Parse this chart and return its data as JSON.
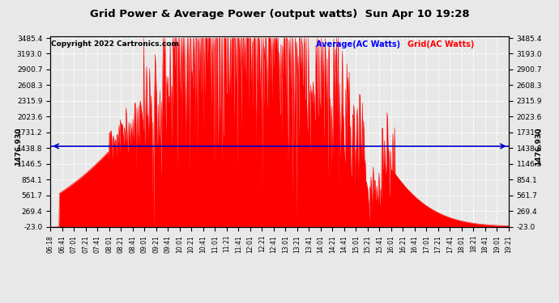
{
  "title": "Grid Power & Average Power (output watts)  Sun Apr 10 19:28",
  "copyright": "Copyright 2022 Cartronics.com",
  "legend_avg": "Average(AC Watts)",
  "legend_grid": "Grid(AC Watts)",
  "avg_value": 1476.93,
  "avg_label": "1476.930",
  "ymin": -23.0,
  "ymax": 3485.4,
  "yticks": [
    -23.0,
    269.4,
    561.7,
    854.1,
    1146.5,
    1438.8,
    1731.2,
    2023.6,
    2315.9,
    2608.3,
    2900.7,
    3193.0,
    3485.4
  ],
  "background_color": "#e8e8e8",
  "fill_color": "#ff0000",
  "line_color": "#ff0000",
  "avg_line_color": "#0000cc",
  "grid_color": "#ffffff",
  "title_color": "#000000",
  "x_labels": [
    "06:18",
    "06:41",
    "07:01",
    "07:21",
    "07:41",
    "08:01",
    "08:21",
    "08:41",
    "09:01",
    "09:21",
    "09:41",
    "10:01",
    "10:21",
    "10:41",
    "11:01",
    "11:21",
    "11:41",
    "12:01",
    "12:21",
    "12:41",
    "13:01",
    "13:21",
    "13:41",
    "14:01",
    "14:21",
    "14:41",
    "15:01",
    "15:21",
    "15:41",
    "16:01",
    "16:21",
    "16:41",
    "17:01",
    "17:21",
    "17:41",
    "18:01",
    "18:21",
    "18:41",
    "19:01",
    "19:21"
  ]
}
